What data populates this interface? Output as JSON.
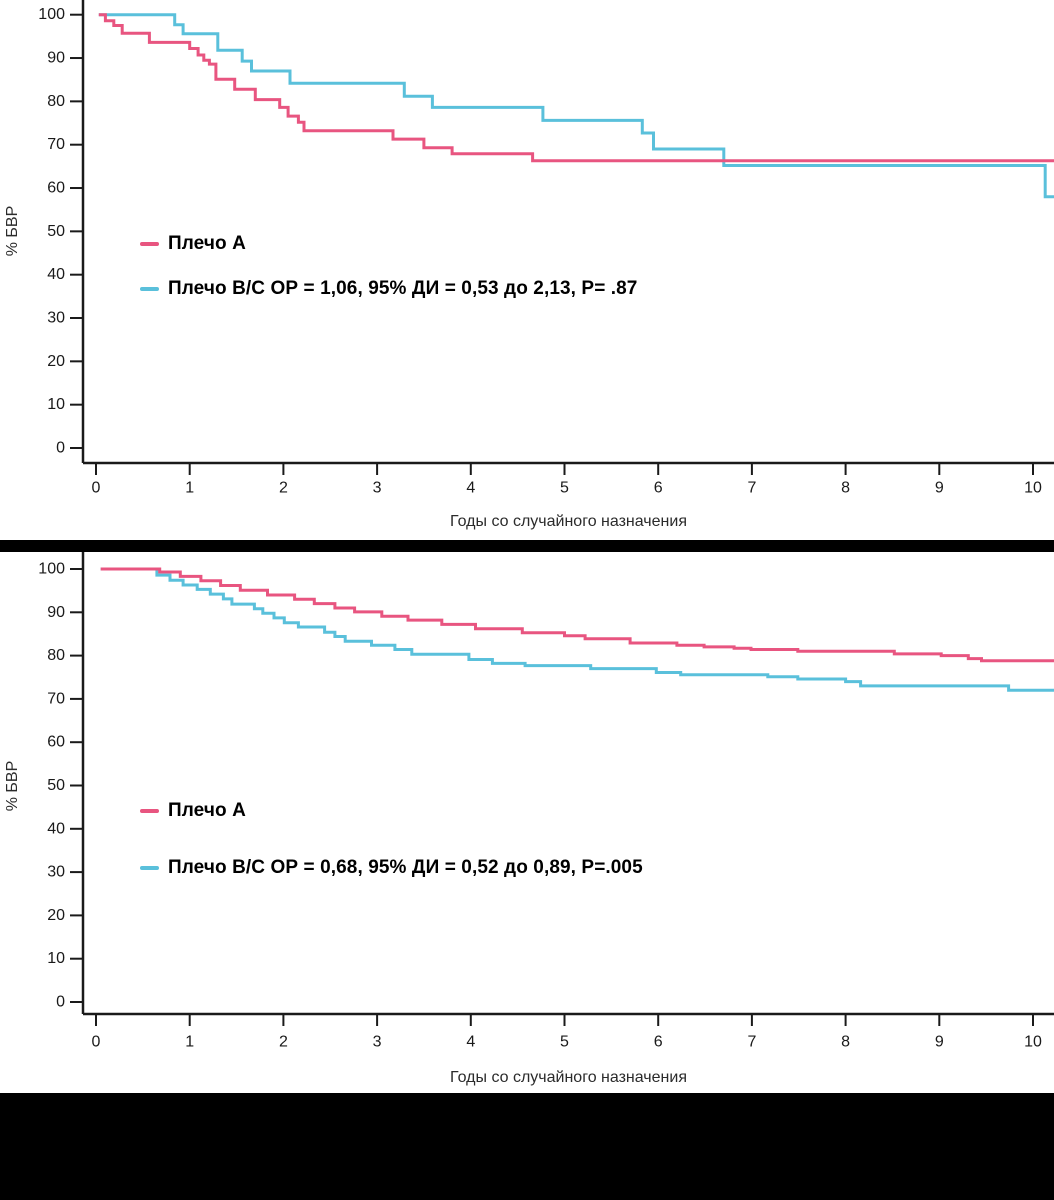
{
  "page": {
    "background": "#ffffff",
    "separator_color": "#000000",
    "footer_color": "#000000"
  },
  "chart_data": [
    {
      "type": "line",
      "subtype": "kaplan-meier-step",
      "title": "",
      "xlabel": "Годы со случайного назначения",
      "ylabel": "% БВР",
      "xlim": [
        0,
        10.25
      ],
      "ylim": [
        0,
        100
      ],
      "xticks": [
        0,
        1,
        2,
        3,
        4,
        5,
        6,
        7,
        8,
        9,
        10
      ],
      "yticks": [
        0,
        10,
        20,
        30,
        40,
        50,
        60,
        70,
        80,
        90,
        100
      ],
      "grid": false,
      "legend_position": "inside-left-middle",
      "axis_color": "#1a1a1a",
      "tick_label_color": "#1a1a1a",
      "series": [
        {
          "name": "Плечо А",
          "label": "Плечо А",
          "color": "#e85580",
          "points": [
            [
              0.03,
              100
            ],
            [
              0.1,
              98.6
            ],
            [
              0.19,
              97.5
            ],
            [
              0.28,
              95.7
            ],
            [
              0.57,
              93.6
            ],
            [
              1.0,
              92.2
            ],
            [
              1.09,
              90.7
            ],
            [
              1.15,
              89.5
            ],
            [
              1.21,
              88.6
            ],
            [
              1.28,
              85.1
            ],
            [
              1.48,
              82.8
            ],
            [
              1.7,
              80.4
            ],
            [
              1.96,
              78.6
            ],
            [
              2.05,
              76.6
            ],
            [
              2.16,
              75.2
            ],
            [
              2.22,
              73.2
            ],
            [
              3.17,
              71.3
            ],
            [
              3.5,
              69.3
            ],
            [
              3.8,
              67.9
            ],
            [
              4.66,
              66.3
            ]
          ]
        },
        {
          "name": "Плечо В/С",
          "label": "Плечо В/С ОР = 1,06, 95% ДИ = 0,53 до 2,13, P= .87",
          "color": "#5ac0db",
          "points": [
            [
              0.03,
              100
            ],
            [
              0.84,
              97.7
            ],
            [
              0.93,
              95.6
            ],
            [
              1.3,
              91.8
            ],
            [
              1.56,
              89.3
            ],
            [
              1.66,
              87.0
            ],
            [
              2.07,
              84.2
            ],
            [
              3.29,
              81.2
            ],
            [
              3.59,
              78.6
            ],
            [
              4.77,
              75.6
            ],
            [
              5.83,
              72.7
            ],
            [
              5.95,
              69.0
            ],
            [
              6.7,
              65.2
            ],
            [
              10.13,
              58.0
            ]
          ]
        }
      ]
    },
    {
      "type": "line",
      "subtype": "kaplan-meier-step",
      "title": "",
      "xlabel": "Годы со случайного назначения",
      "ylabel": "% БВР",
      "xlim": [
        0,
        10.25
      ],
      "ylim": [
        0,
        100
      ],
      "xticks": [
        0,
        1,
        2,
        3,
        4,
        5,
        6,
        7,
        8,
        9,
        10
      ],
      "yticks": [
        0,
        10,
        20,
        30,
        40,
        50,
        60,
        70,
        80,
        90,
        100
      ],
      "grid": false,
      "legend_position": "inside-left-middle",
      "axis_color": "#1a1a1a",
      "tick_label_color": "#1a1a1a",
      "series": [
        {
          "name": "Плечо А",
          "label": "Плечо А",
          "color": "#e85580",
          "points": [
            [
              0.05,
              100
            ],
            [
              0.68,
              99.3
            ],
            [
              0.9,
              98.3
            ],
            [
              1.12,
              97.3
            ],
            [
              1.33,
              96.2
            ],
            [
              1.54,
              95.1
            ],
            [
              1.83,
              94.0
            ],
            [
              2.12,
              93.0
            ],
            [
              2.33,
              92.0
            ],
            [
              2.55,
              91.0
            ],
            [
              2.76,
              90.1
            ],
            [
              3.05,
              89.1
            ],
            [
              3.33,
              88.2
            ],
            [
              3.69,
              87.2
            ],
            [
              4.05,
              86.2
            ],
            [
              4.55,
              85.3
            ],
            [
              5.0,
              84.6
            ],
            [
              5.22,
              83.9
            ],
            [
              5.7,
              82.9
            ],
            [
              6.2,
              82.4
            ],
            [
              6.49,
              82.0
            ],
            [
              6.81,
              81.7
            ],
            [
              6.99,
              81.4
            ],
            [
              7.49,
              81.0
            ],
            [
              8.52,
              80.4
            ],
            [
              9.02,
              80.0
            ],
            [
              9.31,
              79.3
            ],
            [
              9.45,
              78.8
            ]
          ]
        },
        {
          "name": "Плечо В/С",
          "label": "Плечо В/С ОР = 0,68, 95% ДИ = 0,52 до 0,89, P=.005",
          "color": "#5ac0db",
          "points": [
            [
              0.05,
              100
            ],
            [
              0.65,
              98.6
            ],
            [
              0.79,
              97.4
            ],
            [
              0.93,
              96.3
            ],
            [
              1.08,
              95.3
            ],
            [
              1.22,
              94.2
            ],
            [
              1.36,
              93.1
            ],
            [
              1.45,
              91.9
            ],
            [
              1.69,
              90.8
            ],
            [
              1.78,
              89.8
            ],
            [
              1.9,
              88.7
            ],
            [
              2.01,
              87.6
            ],
            [
              2.16,
              86.6
            ],
            [
              2.44,
              85.4
            ],
            [
              2.55,
              84.4
            ],
            [
              2.66,
              83.3
            ],
            [
              2.94,
              82.4
            ],
            [
              3.19,
              81.4
            ],
            [
              3.37,
              80.3
            ],
            [
              3.98,
              79.1
            ],
            [
              4.23,
              78.2
            ],
            [
              4.58,
              77.7
            ],
            [
              5.28,
              77.0
            ],
            [
              5.98,
              76.1
            ],
            [
              6.24,
              75.6
            ],
            [
              7.17,
              75.1
            ],
            [
              7.49,
              74.6
            ],
            [
              8.0,
              74.0
            ],
            [
              8.16,
              73.0
            ],
            [
              9.74,
              72.0
            ]
          ]
        }
      ]
    }
  ]
}
